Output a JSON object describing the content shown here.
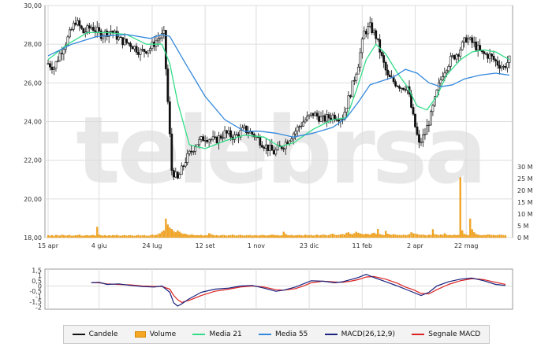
{
  "colors": {
    "candle": "#111111",
    "volume_fill": "#f5a623",
    "volume_stroke": "#d98a00",
    "ma21": "#33dd88",
    "ma55": "#3388dd",
    "macd": "#1a237e",
    "signal": "#dd2222",
    "grid": "#dddddd",
    "frame": "#999999",
    "watermark": "#e8e8e8"
  },
  "watermark": "telebrsa",
  "legend": [
    {
      "label": "Candele",
      "type": "line",
      "color": "#111111"
    },
    {
      "label": "Volume",
      "type": "box",
      "color": "#f5a623"
    },
    {
      "label": "Media 21",
      "type": "line",
      "color": "#33dd88"
    },
    {
      "label": "Media 55",
      "type": "line",
      "color": "#3388dd"
    },
    {
      "label": "MACD(26,12,9)",
      "type": "line",
      "color": "#1a237e"
    },
    {
      "label": "Segnale MACD",
      "type": "line",
      "color": "#dd2222"
    }
  ],
  "chart_data": [
    {
      "type": "candlestick",
      "grid": true,
      "x_tick_labels": [
        "15 apr",
        "4 giu",
        "24 lug",
        "12 set",
        "1 nov",
        "23 dic",
        "11 feb",
        "2 apr",
        "22 mag"
      ],
      "y_ticks": [
        "30,00",
        "28,00",
        "26,00",
        "24,00",
        "22,00",
        "20,00",
        "18,00"
      ],
      "ylim": [
        18,
        30
      ],
      "volume_ticks": [
        "30 M",
        "25 M",
        "20 M",
        "15 M",
        "10 M",
        "5 M",
        "0 M"
      ],
      "volume_ylim": [
        0,
        30
      ],
      "price_path": [
        [
          0,
          27.0
        ],
        [
          3,
          26.8
        ],
        [
          6,
          27.5
        ],
        [
          10,
          28.3
        ],
        [
          14,
          29.2
        ],
        [
          18,
          28.6
        ],
        [
          22,
          28.9
        ],
        [
          27,
          28.5
        ],
        [
          32,
          28.7
        ],
        [
          37,
          28.2
        ],
        [
          42,
          28.0
        ],
        [
          47,
          27.6
        ],
        [
          52,
          27.8
        ],
        [
          56,
          28.3
        ],
        [
          59,
          28.5
        ],
        [
          61,
          25.0
        ],
        [
          63,
          21.5
        ],
        [
          66,
          21.0
        ],
        [
          70,
          22.0
        ],
        [
          75,
          22.8
        ],
        [
          80,
          23.2
        ],
        [
          85,
          23.0
        ],
        [
          90,
          23.4
        ],
        [
          95,
          23.2
        ],
        [
          100,
          23.6
        ],
        [
          105,
          23.3
        ],
        [
          110,
          22.8
        ],
        [
          115,
          22.4
        ],
        [
          120,
          22.8
        ],
        [
          125,
          23.4
        ],
        [
          130,
          24.0
        ],
        [
          135,
          24.4
        ],
        [
          140,
          24.1
        ],
        [
          145,
          24.3
        ],
        [
          150,
          24.2
        ],
        [
          154,
          25.5
        ],
        [
          158,
          27.0
        ],
        [
          161,
          28.6
        ],
        [
          164,
          28.9
        ],
        [
          167,
          28.4
        ],
        [
          170,
          27.3
        ],
        [
          173,
          26.3
        ],
        [
          177,
          26.0
        ],
        [
          180,
          25.8
        ],
        [
          183,
          25.8
        ],
        [
          186,
          24.2
        ],
        [
          189,
          22.8
        ],
        [
          192,
          23.4
        ],
        [
          195,
          24.3
        ],
        [
          198,
          25.5
        ],
        [
          201,
          26.5
        ],
        [
          205,
          27.2
        ],
        [
          209,
          27.6
        ],
        [
          213,
          28.3
        ],
        [
          217,
          28.0
        ],
        [
          221,
          27.5
        ],
        [
          225,
          27.4
        ],
        [
          229,
          27.0
        ],
        [
          232,
          26.8
        ],
        [
          235,
          27.2
        ]
      ],
      "n_periods": 236,
      "ma21_path": [
        [
          0,
          27.2
        ],
        [
          10,
          28.0
        ],
        [
          20,
          28.6
        ],
        [
          30,
          28.6
        ],
        [
          40,
          28.5
        ],
        [
          50,
          28.0
        ],
        [
          58,
          28.0
        ],
        [
          62,
          27.0
        ],
        [
          66,
          25.0
        ],
        [
          72,
          22.8
        ],
        [
          80,
          22.6
        ],
        [
          90,
          23.0
        ],
        [
          100,
          23.3
        ],
        [
          110,
          23.2
        ],
        [
          118,
          22.7
        ],
        [
          125,
          22.9
        ],
        [
          135,
          23.6
        ],
        [
          145,
          24.1
        ],
        [
          152,
          24.2
        ],
        [
          157,
          25.6
        ],
        [
          162,
          27.2
        ],
        [
          167,
          28.0
        ],
        [
          172,
          27.5
        ],
        [
          178,
          26.5
        ],
        [
          183,
          25.8
        ],
        [
          188,
          24.8
        ],
        [
          193,
          24.6
        ],
        [
          198,
          25.3
        ],
        [
          203,
          26.4
        ],
        [
          210,
          27.2
        ],
        [
          216,
          27.6
        ],
        [
          222,
          27.7
        ],
        [
          228,
          27.6
        ],
        [
          235,
          27.2
        ]
      ],
      "ma55_path": [
        [
          0,
          27.4
        ],
        [
          12,
          28.0
        ],
        [
          25,
          28.4
        ],
        [
          40,
          28.5
        ],
        [
          52,
          28.3
        ],
        [
          58,
          28.5
        ],
        [
          62,
          28.4
        ],
        [
          70,
          27.0
        ],
        [
          80,
          25.3
        ],
        [
          90,
          24.1
        ],
        [
          100,
          23.5
        ],
        [
          108,
          23.5
        ],
        [
          116,
          23.4
        ],
        [
          125,
          23.2
        ],
        [
          135,
          23.4
        ],
        [
          145,
          23.7
        ],
        [
          152,
          24.2
        ],
        [
          158,
          25.0
        ],
        [
          164,
          25.9
        ],
        [
          170,
          26.1
        ],
        [
          176,
          26.3
        ],
        [
          182,
          26.7
        ],
        [
          188,
          26.5
        ],
        [
          194,
          26.0
        ],
        [
          200,
          25.8
        ],
        [
          206,
          25.9
        ],
        [
          212,
          26.2
        ],
        [
          220,
          26.4
        ],
        [
          228,
          26.5
        ],
        [
          235,
          26.4
        ]
      ],
      "volume_values": [
        0.9,
        0.8,
        1.0,
        0.7,
        1.1,
        0.9,
        0.8,
        1.2,
        1.0,
        0.8,
        0.9,
        1.1,
        0.7,
        0.8,
        0.9,
        1.0,
        1.2,
        0.8,
        0.7,
        0.9,
        1.0,
        0.8,
        0.9,
        1.1,
        0.8,
        4.5,
        1.2,
        0.9,
        0.8,
        1.0,
        0.7,
        0.9,
        0.8,
        1.0,
        0.9,
        1.1,
        0.8,
        0.7,
        0.9,
        1.0,
        0.8,
        0.9,
        1.0,
        0.8,
        0.7,
        0.9,
        1.1,
        0.8,
        0.9,
        1.0,
        0.8,
        0.7,
        0.9,
        1.2,
        1.0,
        1.1,
        1.4,
        1.8,
        2.5,
        3.0,
        8.0,
        5.5,
        4.2,
        3.6,
        2.8,
        2.2,
        3.0,
        2.4,
        1.8,
        1.5,
        1.6,
        1.2,
        1.0,
        1.3,
        1.1,
        0.9,
        1.0,
        0.9,
        1.1,
        0.8,
        0.9,
        1.0,
        1.8,
        1.4,
        1.1,
        0.9,
        1.0,
        0.8,
        0.9,
        1.1,
        1.0,
        0.8,
        0.9,
        1.0,
        1.2,
        0.9,
        0.8,
        1.0,
        1.1,
        0.9,
        0.8,
        1.0,
        0.9,
        1.1,
        0.8,
        0.9,
        1.0,
        0.8,
        0.9,
        1.1,
        1.0,
        0.8,
        0.9,
        1.0,
        1.2,
        1.1,
        0.9,
        1.0,
        0.8,
        0.9,
        2.4,
        1.5,
        1.0,
        0.9,
        1.1,
        0.8,
        0.9,
        1.0,
        1.1,
        0.9,
        0.8,
        1.2,
        1.0,
        0.9,
        1.1,
        0.8,
        1.0,
        1.2,
        0.9,
        1.0,
        1.3,
        1.1,
        0.9,
        1.0,
        1.4,
        1.6,
        1.2,
        1.0,
        1.1,
        1.3,
        1.5,
        1.2,
        2.0,
        2.2,
        1.6,
        1.4,
        1.8,
        2.4,
        2.0,
        1.7,
        1.5,
        1.3,
        1.6,
        1.4,
        1.2,
        1.8,
        2.0,
        1.5,
        3.6,
        1.4,
        1.2,
        1.0,
        2.8,
        1.6,
        1.3,
        1.1,
        1.4,
        1.2,
        1.0,
        1.1,
        0.9,
        1.2,
        1.0,
        1.1,
        1.4,
        2.2,
        1.8,
        1.6,
        1.4,
        1.2,
        1.1,
        1.3,
        1.0,
        0.9,
        1.2,
        1.1,
        3.5,
        1.4,
        1.2,
        1.0,
        1.3,
        1.1,
        1.8,
        1.2,
        1.0,
        1.1,
        0.9,
        1.2,
        1.0,
        1.1,
        25.5,
        3.0,
        1.5,
        1.2,
        1.0,
        8.0,
        3.5,
        2.2,
        1.5,
        1.2,
        1.0,
        0.9,
        1.1,
        1.0,
        1.3,
        1.2,
        1.0,
        1.1,
        0.9,
        1.0,
        1.2,
        1.1,
        1.0,
        0.9
      ]
    },
    {
      "type": "line",
      "name": "MACD",
      "y_ticks": [
        "1,5",
        "1",
        "0,5",
        "0",
        "-0,5",
        "-1",
        "-1,5",
        "-2"
      ],
      "ylim": [
        -2.2,
        1.6
      ],
      "macd_path": [
        [
          22,
          0.3
        ],
        [
          26,
          0.35
        ],
        [
          30,
          0.15
        ],
        [
          36,
          0.2
        ],
        [
          42,
          0.05
        ],
        [
          48,
          -0.05
        ],
        [
          54,
          -0.1
        ],
        [
          58,
          0.0
        ],
        [
          62,
          -0.6
        ],
        [
          64,
          -1.6
        ],
        [
          66,
          -1.9
        ],
        [
          68,
          -1.7
        ],
        [
          72,
          -1.2
        ],
        [
          78,
          -0.6
        ],
        [
          85,
          -0.3
        ],
        [
          92,
          -0.2
        ],
        [
          98,
          0.0
        ],
        [
          104,
          0.05
        ],
        [
          110,
          -0.2
        ],
        [
          116,
          -0.5
        ],
        [
          120,
          -0.4
        ],
        [
          126,
          -0.1
        ],
        [
          130,
          0.2
        ],
        [
          134,
          0.5
        ],
        [
          140,
          0.45
        ],
        [
          146,
          0.3
        ],
        [
          150,
          0.4
        ],
        [
          154,
          0.6
        ],
        [
          158,
          0.8
        ],
        [
          162,
          1.1
        ],
        [
          166,
          0.8
        ],
        [
          172,
          0.4
        ],
        [
          178,
          0.0
        ],
        [
          182,
          -0.3
        ],
        [
          186,
          -0.6
        ],
        [
          190,
          -0.9
        ],
        [
          194,
          -0.6
        ],
        [
          198,
          0.0
        ],
        [
          204,
          0.4
        ],
        [
          210,
          0.65
        ],
        [
          216,
          0.75
        ],
        [
          222,
          0.5
        ],
        [
          228,
          0.15
        ],
        [
          233,
          0.05
        ]
      ],
      "signal_path": [
        [
          22,
          0.3
        ],
        [
          26,
          0.3
        ],
        [
          30,
          0.2
        ],
        [
          36,
          0.15
        ],
        [
          42,
          0.1
        ],
        [
          48,
          0.0
        ],
        [
          54,
          -0.05
        ],
        [
          58,
          -0.05
        ],
        [
          62,
          -0.3
        ],
        [
          64,
          -0.9
        ],
        [
          66,
          -1.3
        ],
        [
          68,
          -1.55
        ],
        [
          72,
          -1.35
        ],
        [
          78,
          -0.9
        ],
        [
          85,
          -0.5
        ],
        [
          92,
          -0.3
        ],
        [
          98,
          -0.1
        ],
        [
          104,
          0.0
        ],
        [
          110,
          -0.1
        ],
        [
          116,
          -0.35
        ],
        [
          120,
          -0.4
        ],
        [
          126,
          -0.25
        ],
        [
          130,
          0.0
        ],
        [
          134,
          0.3
        ],
        [
          140,
          0.45
        ],
        [
          146,
          0.38
        ],
        [
          150,
          0.35
        ],
        [
          154,
          0.45
        ],
        [
          158,
          0.6
        ],
        [
          162,
          0.85
        ],
        [
          166,
          0.9
        ],
        [
          172,
          0.65
        ],
        [
          178,
          0.25
        ],
        [
          182,
          -0.1
        ],
        [
          186,
          -0.35
        ],
        [
          190,
          -0.7
        ],
        [
          194,
          -0.75
        ],
        [
          198,
          -0.35
        ],
        [
          204,
          0.15
        ],
        [
          210,
          0.5
        ],
        [
          216,
          0.7
        ],
        [
          222,
          0.6
        ],
        [
          228,
          0.35
        ],
        [
          233,
          0.15
        ]
      ]
    }
  ]
}
